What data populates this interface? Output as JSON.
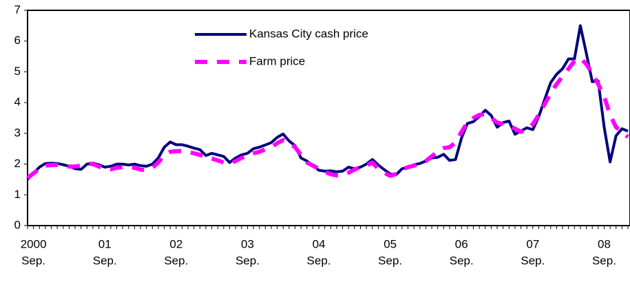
{
  "chart_data": {
    "type": "line",
    "categories": [
      null,
      [
        "2000",
        "Sep."
      ],
      null,
      null,
      null,
      null,
      null,
      null,
      null,
      null,
      null,
      null,
      null,
      [
        "01",
        "Sep."
      ],
      null,
      null,
      null,
      null,
      null,
      null,
      null,
      null,
      null,
      null,
      null,
      [
        "02",
        "Sep."
      ],
      null,
      null,
      null,
      null,
      null,
      null,
      null,
      null,
      null,
      null,
      null,
      [
        "03",
        "Sep."
      ],
      null,
      null,
      null,
      null,
      null,
      null,
      null,
      null,
      null,
      null,
      null,
      [
        "04",
        "Sep."
      ],
      null,
      null,
      null,
      null,
      null,
      null,
      null,
      null,
      null,
      null,
      null,
      [
        "05",
        "Sep."
      ],
      null,
      null,
      null,
      null,
      null,
      null,
      null,
      null,
      null,
      null,
      null,
      [
        "06",
        "Sep."
      ],
      null,
      null,
      null,
      null,
      null,
      null,
      null,
      null,
      null,
      null,
      null,
      [
        "07",
        "Sep."
      ],
      null,
      null,
      null,
      null,
      null,
      null,
      null,
      null,
      null,
      null,
      null,
      [
        "08",
        "Sep."
      ],
      null,
      null,
      null,
      null
    ],
    "series": [
      {
        "name": "Kansas City cash price",
        "color": "#000080",
        "dashed": false,
        "values": [
          1.5,
          1.7,
          1.9,
          2.02,
          2.03,
          2.02,
          1.98,
          1.93,
          1.85,
          1.83,
          2.0,
          2.03,
          1.98,
          1.9,
          1.93,
          2.0,
          2.0,
          1.97,
          2.0,
          1.95,
          1.93,
          2.0,
          2.2,
          2.55,
          2.72,
          2.63,
          2.63,
          2.58,
          2.52,
          2.47,
          2.28,
          2.35,
          2.3,
          2.25,
          2.05,
          2.2,
          2.3,
          2.35,
          2.5,
          2.55,
          2.62,
          2.7,
          2.87,
          2.98,
          2.75,
          2.6,
          2.2,
          2.1,
          1.95,
          1.8,
          1.77,
          1.78,
          1.75,
          1.77,
          1.9,
          1.85,
          1.9,
          2.0,
          2.15,
          1.97,
          1.82,
          1.68,
          1.65,
          1.85,
          1.9,
          1.98,
          2.02,
          2.1,
          2.2,
          2.22,
          2.32,
          2.12,
          2.15,
          2.85,
          3.32,
          3.38,
          3.55,
          3.75,
          3.58,
          3.2,
          3.35,
          3.4,
          2.97,
          3.08,
          3.18,
          3.12,
          3.55,
          4.1,
          4.65,
          4.92,
          5.1,
          5.42,
          5.42,
          6.5,
          5.6,
          4.68,
          4.7,
          3.2,
          2.07,
          2.92,
          3.15,
          3.07
        ]
      },
      {
        "name": "Farm price",
        "color": "#FF00FF",
        "dashed": true,
        "values": [
          1.55,
          1.7,
          1.85,
          1.95,
          1.97,
          1.97,
          1.93,
          1.92,
          1.92,
          1.95,
          2.02,
          2.0,
          1.92,
          1.85,
          1.83,
          1.88,
          1.9,
          1.9,
          1.88,
          1.82,
          1.8,
          1.88,
          2.05,
          2.3,
          2.4,
          2.42,
          2.42,
          2.4,
          2.35,
          2.3,
          2.22,
          2.18,
          2.12,
          2.05,
          2.02,
          2.1,
          2.2,
          2.28,
          2.35,
          2.4,
          2.48,
          2.55,
          2.68,
          2.78,
          2.7,
          2.55,
          2.3,
          2.05,
          1.95,
          1.85,
          1.75,
          1.67,
          1.63,
          1.65,
          1.72,
          1.82,
          1.9,
          1.95,
          2.05,
          1.85,
          1.72,
          1.62,
          1.68,
          1.82,
          1.9,
          1.95,
          2.0,
          2.1,
          2.25,
          2.42,
          2.52,
          2.55,
          2.7,
          3.05,
          3.35,
          3.5,
          3.6,
          3.62,
          3.5,
          3.35,
          3.3,
          3.25,
          3.15,
          3.05,
          3.12,
          3.3,
          3.6,
          3.95,
          4.3,
          4.6,
          4.85,
          5.1,
          5.35,
          5.45,
          5.25,
          4.95,
          4.6,
          4.2,
          3.6,
          3.2,
          3.05,
          2.88
        ]
      }
    ],
    "ylim": [
      0,
      7
    ],
    "yticks": [
      0,
      1,
      2,
      3,
      4,
      5,
      6,
      7
    ],
    "grid": false,
    "legend": "top"
  }
}
